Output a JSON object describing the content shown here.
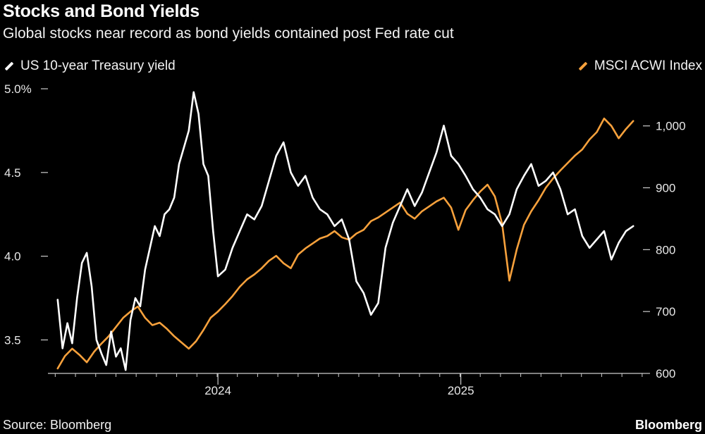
{
  "header": {
    "title": "Stocks and Bond Yields",
    "subtitle": "Global stocks near record as bond yields contained post Fed rate cut"
  },
  "legend": {
    "left_label": "US 10-year Treasury yield",
    "right_label": "MSCI ACWI Index"
  },
  "footer": {
    "source": "Source: Bloomberg",
    "brand": "Bloomberg"
  },
  "colors": {
    "background": "#000000",
    "yield_line": "#ffffff",
    "index_line": "#f7a13c",
    "axis": "#cccccc"
  },
  "chart_data": {
    "type": "line",
    "title": "Stocks and Bond Yields",
    "x_range": [
      2023.3,
      2025.75
    ],
    "x_ticks": [
      {
        "value": 2024.0,
        "label": "2024"
      },
      {
        "value": 2025.0,
        "label": "2025"
      }
    ],
    "left_axis": {
      "label": "US 10-year Treasury yield (%)",
      "ylim": [
        3.3,
        5.0
      ],
      "ticks": [
        {
          "value": 5.0,
          "label": "5.0%"
        },
        {
          "value": 4.5,
          "label": "4.5"
        },
        {
          "value": 4.0,
          "label": "4.0"
        },
        {
          "value": 3.5,
          "label": "3.5"
        }
      ]
    },
    "right_axis": {
      "label": "MSCI ACWI Index",
      "ylim": [
        600,
        1060
      ],
      "ticks": [
        {
          "value": 1000,
          "label": "1,000"
        },
        {
          "value": 900,
          "label": "900"
        },
        {
          "value": 800,
          "label": "800"
        },
        {
          "value": 700,
          "label": "700"
        },
        {
          "value": 600,
          "label": "600"
        }
      ]
    },
    "series": [
      {
        "name": "US 10-year Treasury yield",
        "axis": "left",
        "color": "#ffffff",
        "x": [
          2023.34,
          2023.36,
          2023.38,
          2023.4,
          2023.42,
          2023.44,
          2023.46,
          2023.48,
          2023.5,
          2023.52,
          2023.54,
          2023.56,
          2023.58,
          2023.6,
          2023.62,
          2023.64,
          2023.66,
          2023.68,
          2023.7,
          2023.72,
          2023.74,
          2023.76,
          2023.78,
          2023.8,
          2023.82,
          2023.84,
          2023.86,
          2023.88,
          2023.9,
          2023.92,
          2023.94,
          2023.96,
          2023.98,
          2024.0,
          2024.03,
          2024.06,
          2024.09,
          2024.12,
          2024.15,
          2024.18,
          2024.21,
          2024.24,
          2024.27,
          2024.3,
          2024.33,
          2024.36,
          2024.39,
          2024.42,
          2024.45,
          2024.48,
          2024.51,
          2024.54,
          2024.57,
          2024.6,
          2024.63,
          2024.66,
          2024.69,
          2024.72,
          2024.75,
          2024.78,
          2024.81,
          2024.84,
          2024.87,
          2024.9,
          2024.93,
          2024.96,
          2024.99,
          2025.02,
          2025.05,
          2025.08,
          2025.11,
          2025.14,
          2025.17,
          2025.2,
          2025.23,
          2025.26,
          2025.29,
          2025.32,
          2025.35,
          2025.38,
          2025.41,
          2025.44,
          2025.47,
          2025.5,
          2025.53,
          2025.56,
          2025.59,
          2025.62,
          2025.65,
          2025.68,
          2025.71
        ],
        "values": [
          3.74,
          3.45,
          3.6,
          3.48,
          3.75,
          3.96,
          4.02,
          3.82,
          3.5,
          3.42,
          3.35,
          3.55,
          3.4,
          3.45,
          3.32,
          3.62,
          3.75,
          3.7,
          3.92,
          4.05,
          4.18,
          4.12,
          4.25,
          4.28,
          4.35,
          4.55,
          4.65,
          4.75,
          4.98,
          4.85,
          4.55,
          4.48,
          4.15,
          3.88,
          3.92,
          4.05,
          4.15,
          4.25,
          4.22,
          4.3,
          4.45,
          4.6,
          4.68,
          4.5,
          4.42,
          4.48,
          4.35,
          4.28,
          4.25,
          4.18,
          4.22,
          4.1,
          3.85,
          3.78,
          3.65,
          3.72,
          4.05,
          4.2,
          4.3,
          4.4,
          4.3,
          4.38,
          4.5,
          4.62,
          4.78,
          4.6,
          4.55,
          4.48,
          4.4,
          4.35,
          4.28,
          4.25,
          4.18,
          4.25,
          4.4,
          4.48,
          4.55,
          4.42,
          4.45,
          4.5,
          4.4,
          4.25,
          4.28,
          4.12,
          4.05,
          4.1,
          4.15,
          3.98,
          4.08,
          4.15,
          4.18
        ]
      },
      {
        "name": "MSCI ACWI Index",
        "axis": "right",
        "color": "#f7a13c",
        "x": [
          2023.34,
          2023.37,
          2023.4,
          2023.43,
          2023.46,
          2023.49,
          2023.52,
          2023.55,
          2023.58,
          2023.61,
          2023.64,
          2023.67,
          2023.7,
          2023.73,
          2023.76,
          2023.79,
          2023.82,
          2023.85,
          2023.88,
          2023.91,
          2023.94,
          2023.97,
          2024.0,
          2024.03,
          2024.06,
          2024.09,
          2024.12,
          2024.15,
          2024.18,
          2024.21,
          2024.24,
          2024.27,
          2024.3,
          2024.33,
          2024.36,
          2024.39,
          2024.42,
          2024.45,
          2024.48,
          2024.51,
          2024.54,
          2024.57,
          2024.6,
          2024.63,
          2024.66,
          2024.69,
          2024.72,
          2024.75,
          2024.78,
          2024.81,
          2024.84,
          2024.87,
          2024.9,
          2024.93,
          2024.96,
          2024.99,
          2025.02,
          2025.05,
          2025.08,
          2025.11,
          2025.14,
          2025.17,
          2025.2,
          2025.23,
          2025.26,
          2025.29,
          2025.32,
          2025.35,
          2025.38,
          2025.41,
          2025.44,
          2025.47,
          2025.5,
          2025.53,
          2025.56,
          2025.59,
          2025.62,
          2025.65,
          2025.68,
          2025.71
        ],
        "values": [
          608,
          628,
          640,
          630,
          618,
          635,
          648,
          660,
          675,
          690,
          700,
          708,
          690,
          678,
          682,
          672,
          660,
          650,
          640,
          652,
          670,
          690,
          700,
          712,
          725,
          740,
          752,
          760,
          770,
          782,
          790,
          778,
          770,
          792,
          802,
          810,
          818,
          822,
          830,
          820,
          816,
          826,
          832,
          846,
          852,
          860,
          868,
          876,
          858,
          850,
          862,
          870,
          878,
          884,
          868,
          832,
          864,
          880,
          894,
          905,
          886,
          842,
          750,
          800,
          840,
          862,
          880,
          900,
          915,
          928,
          940,
          952,
          962,
          978,
          990,
          1012,
          1000,
          980,
          995,
          1008
        ]
      }
    ]
  }
}
